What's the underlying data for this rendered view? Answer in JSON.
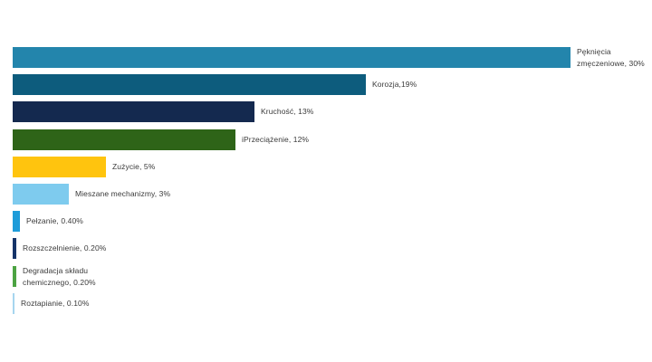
{
  "page": {
    "background": "#FFFFFF"
  },
  "chart_data": {
    "type": "bar",
    "orientation": "horizontal",
    "title": "",
    "xlabel": "",
    "ylabel": "",
    "xlim": [
      0,
      35
    ],
    "grid": false,
    "legend": false,
    "axes_visible": false,
    "background": "#FFFFFF",
    "label_color": "#3A3A3A",
    "categories": [
      "Pęknięcia zmęczeniowe",
      "Korozja",
      "Kruchość",
      "Przeciążenie",
      "Zużycie",
      "Mieszane mechanizmy",
      "Pełzanie",
      "Rozszczelnienie",
      "Degradacja składu chemicznego",
      "Roztapianie"
    ],
    "values": [
      30,
      19,
      13,
      12,
      5,
      3,
      0.4,
      0.2,
      0.2,
      0.1
    ],
    "value_label_lines": [
      [
        "Pęknięcia",
        "zmęczeniowe, 30%"
      ],
      [
        "Korozja,19%"
      ],
      [
        "Kruchość, 13%"
      ],
      [
        "iPrzeciążenie, 12%"
      ],
      [
        "Zużycie, 5%"
      ],
      [
        "Mieszane mechanizmy, 3%"
      ],
      [
        "Pełzanie, 0.40%"
      ],
      [
        "Rozszczelnienie, 0.20%"
      ],
      [
        "Degradacja składu",
        "chemicznego, 0.20%"
      ],
      [
        "Roztapianie, 0.10%"
      ]
    ],
    "colors": [
      "#2385AC",
      "#0D5C7D",
      "#14294F",
      "#2E6418",
      "#FFC40E",
      "#7ECBEE",
      "#1E9CD9",
      "#163469",
      "#4CA342",
      "#A6D5EF"
    ]
  }
}
